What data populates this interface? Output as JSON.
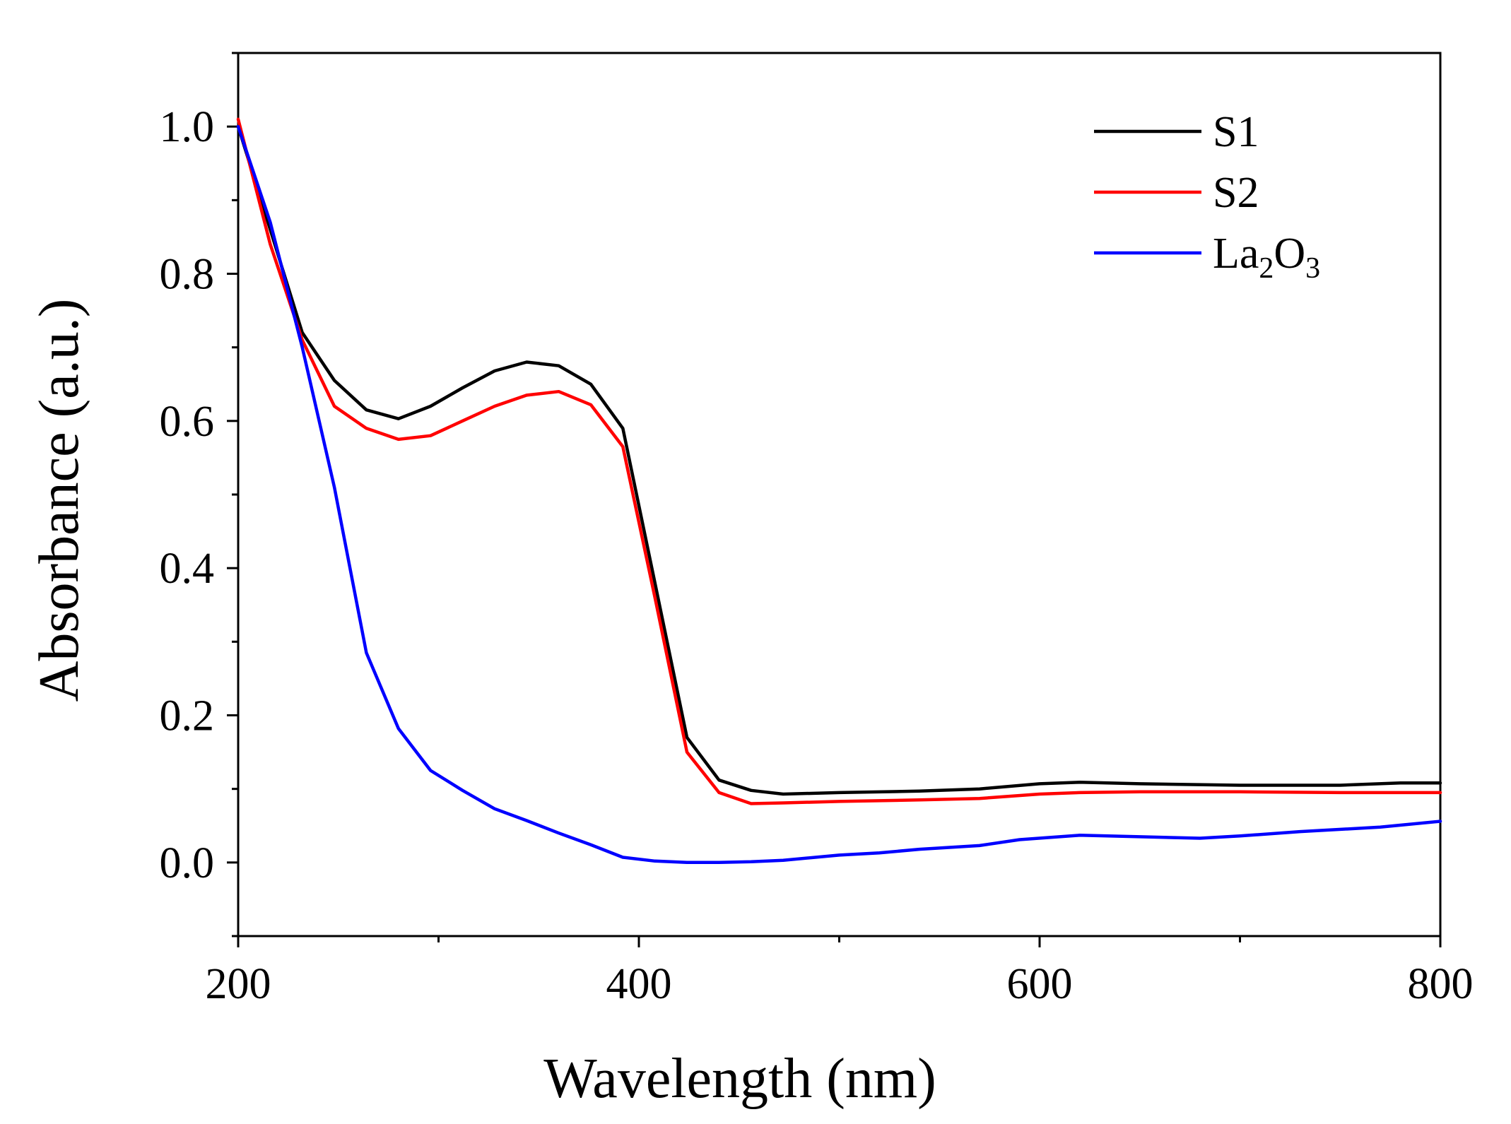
{
  "chart_data": {
    "type": "line",
    "title": "",
    "xlabel": "Wavelength (nm)",
    "ylabel": "Absorbance (a.u.)",
    "xlim": [
      200,
      800
    ],
    "ylim": [
      -0.1,
      1.1
    ],
    "x_ticks": [
      200,
      400,
      600,
      800
    ],
    "x_tick_labels": [
      "200",
      "400",
      "600",
      "800"
    ],
    "x_minor_ticks": [
      300,
      500,
      700
    ],
    "y_ticks": [
      0.0,
      0.2,
      0.4,
      0.6,
      0.8,
      1.0
    ],
    "y_tick_labels": [
      "0.0",
      "0.2",
      "0.4",
      "0.6",
      "0.8",
      "1.0"
    ],
    "y_minor_ticks": [
      -0.1,
      0.1,
      0.3,
      0.5,
      0.7,
      0.9,
      1.1
    ],
    "grid": false,
    "legend_position": "top-right",
    "series": [
      {
        "name": "S1",
        "color": "#000000",
        "x": [
          200,
          216,
          232,
          248,
          264,
          280,
          296,
          312,
          328,
          344,
          360,
          376,
          392,
          408,
          424,
          440,
          456,
          472,
          500,
          540,
          570,
          600,
          620,
          650,
          700,
          750,
          780,
          800
        ],
        "y": [
          1.0,
          0.86,
          0.72,
          0.655,
          0.615,
          0.603,
          0.62,
          0.645,
          0.668,
          0.68,
          0.675,
          0.65,
          0.59,
          0.38,
          0.17,
          0.112,
          0.098,
          0.093,
          0.095,
          0.097,
          0.1,
          0.107,
          0.109,
          0.107,
          0.105,
          0.105,
          0.108,
          0.108
        ]
      },
      {
        "name": "S2",
        "color": "#ff0000",
        "x": [
          200,
          216,
          232,
          248,
          264,
          280,
          296,
          312,
          328,
          344,
          360,
          376,
          392,
          408,
          424,
          440,
          456,
          472,
          500,
          540,
          570,
          600,
          620,
          650,
          700,
          750,
          780,
          800
        ],
        "y": [
          1.01,
          0.84,
          0.71,
          0.62,
          0.59,
          0.575,
          0.58,
          0.6,
          0.62,
          0.635,
          0.64,
          0.622,
          0.565,
          0.36,
          0.15,
          0.095,
          0.08,
          0.081,
          0.083,
          0.085,
          0.087,
          0.093,
          0.095,
          0.096,
          0.096,
          0.095,
          0.095,
          0.095
        ]
      },
      {
        "name": "La2O3",
        "label_main": "La",
        "label_sub1": "2",
        "label_mid": "O",
        "label_sub2": "3",
        "color": "#0000ff",
        "x": [
          200,
          216,
          232,
          248,
          264,
          280,
          296,
          312,
          328,
          344,
          360,
          376,
          392,
          408,
          424,
          440,
          456,
          472,
          500,
          520,
          540,
          570,
          590,
          620,
          650,
          680,
          700,
          730,
          770,
          800
        ],
        "y": [
          1.0,
          0.87,
          0.7,
          0.51,
          0.285,
          0.182,
          0.125,
          0.098,
          0.073,
          0.057,
          0.04,
          0.024,
          0.007,
          0.002,
          0.0,
          0.0,
          0.001,
          0.003,
          0.01,
          0.013,
          0.018,
          0.023,
          0.031,
          0.037,
          0.035,
          0.033,
          0.036,
          0.042,
          0.048,
          0.056
        ]
      }
    ]
  }
}
